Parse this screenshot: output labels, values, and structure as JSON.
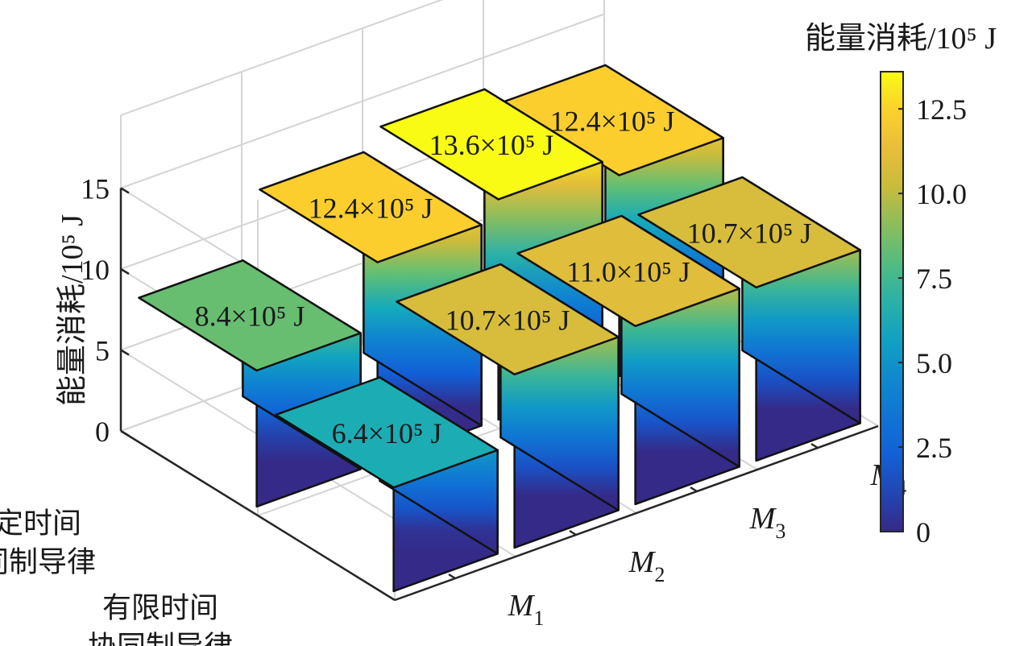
{
  "chart_data": {
    "type": "bar3d",
    "zlabel": "能量消耗/10⁵ J",
    "zlim": [
      0,
      15
    ],
    "z_ticks": [
      "0",
      "5",
      "10",
      "15"
    ],
    "row_labels": [
      [
        "固定时间",
        "协同制导律"
      ],
      [
        "有限时间",
        "协同制导律"
      ]
    ],
    "column_labels": [
      {
        "base": "M",
        "sub": "1"
      },
      {
        "base": "M",
        "sub": "2"
      },
      {
        "base": "M",
        "sub": "3"
      },
      {
        "base": "M",
        "sub": "4"
      }
    ],
    "series": [
      {
        "values": [
          8.4,
          12.4,
          13.6,
          12.4
        ]
      },
      {
        "values": [
          6.4,
          10.7,
          11.0,
          10.7
        ]
      }
    ],
    "value_label_unit": "×10⁵ J",
    "colorbar": {
      "title": "能量消耗/10⁵ J",
      "ticks": [
        "0",
        "2.5",
        "5.0",
        "7.5",
        "10.0",
        "12.5"
      ],
      "range": [
        0,
        13.6
      ],
      "colormap": "parula"
    },
    "grid": true
  }
}
